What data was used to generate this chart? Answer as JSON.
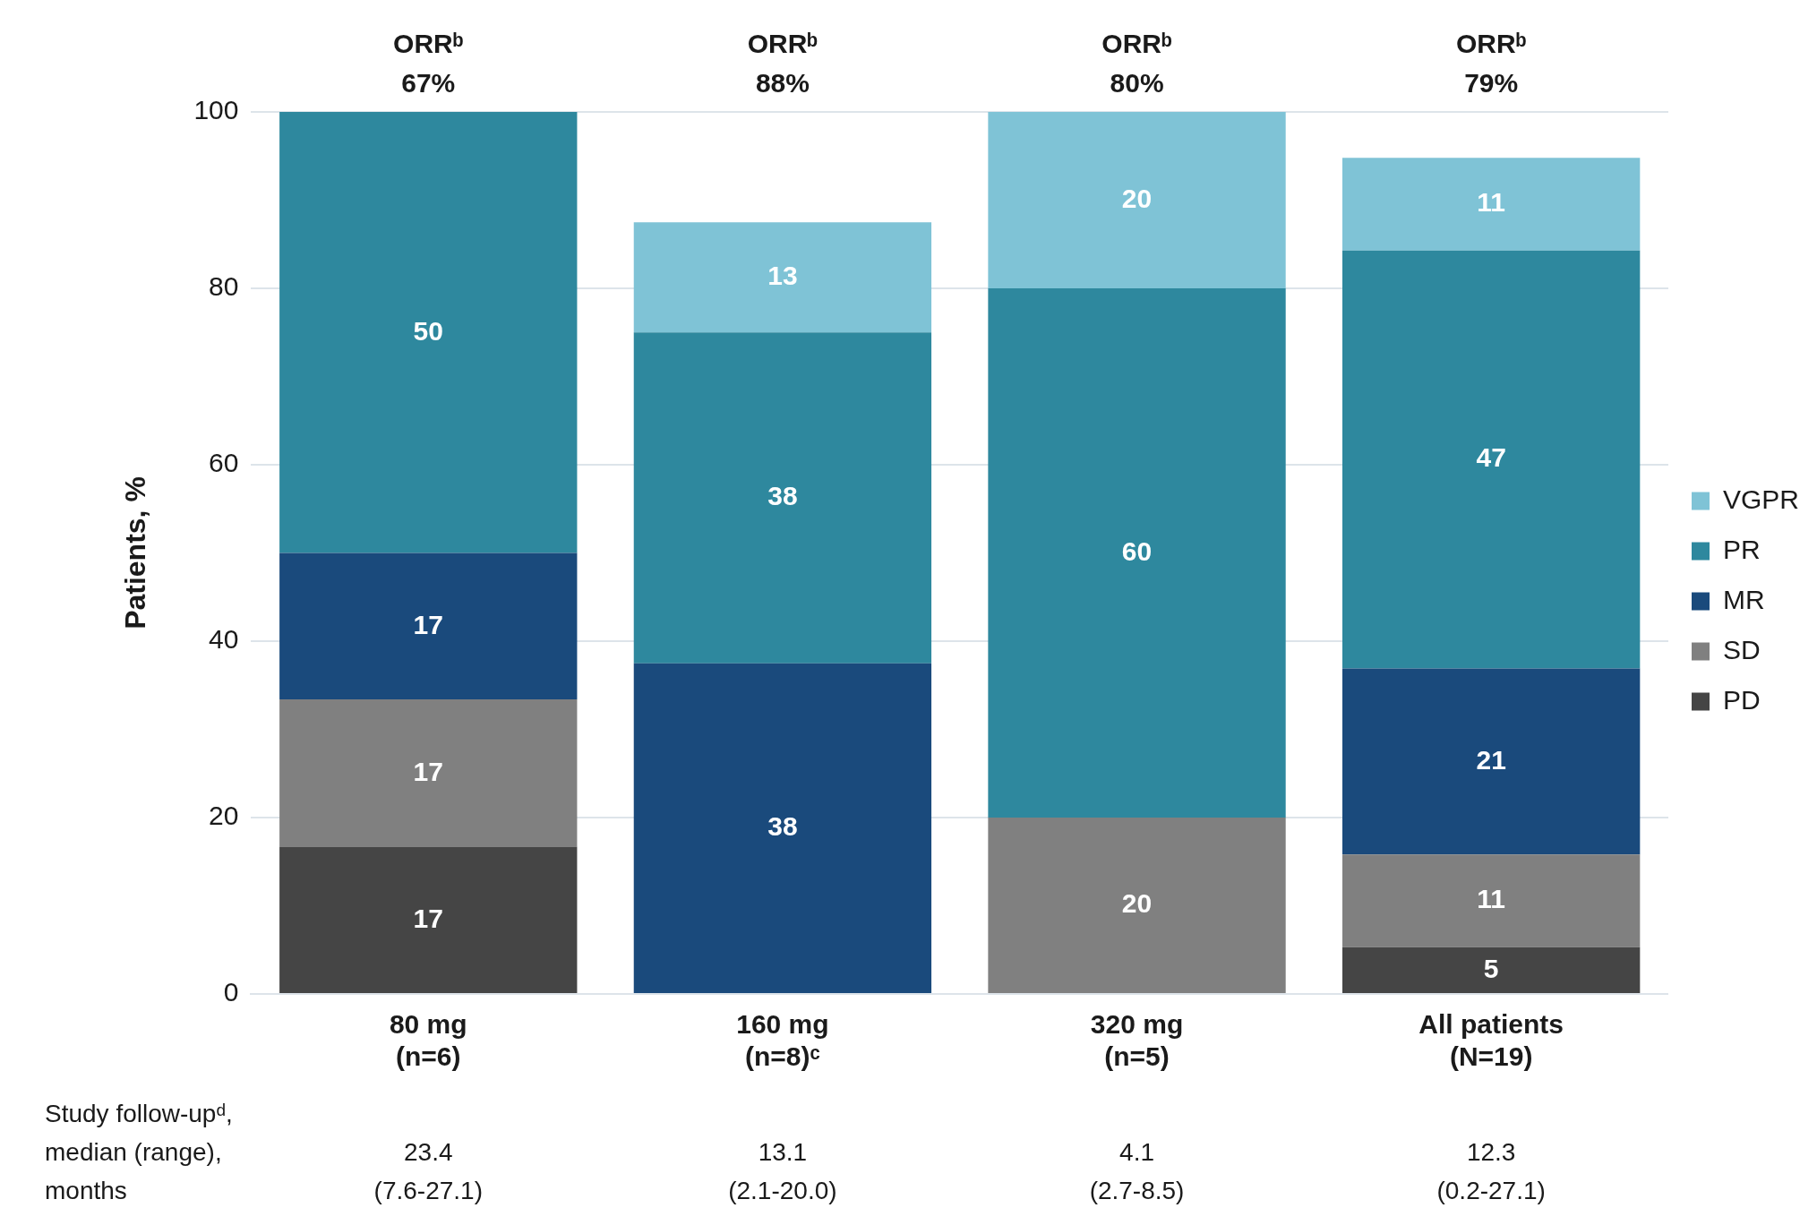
{
  "chart_data": {
    "type": "bar",
    "stacked": true,
    "ylabel": "Patients, %",
    "categories": [
      "80 mg\n(n=6)",
      "160 mg\n(n=8)ᶜ",
      "320 mg\n(n=5)",
      "All patients\n(N=19)"
    ],
    "series": [
      {
        "name": "PD",
        "color": "#454545",
        "values": [
          16.7,
          0,
          0,
          5.3
        ],
        "value_labels": [
          "17",
          null,
          null,
          "5"
        ]
      },
      {
        "name": "SD",
        "color": "#808080",
        "values": [
          16.7,
          0,
          20,
          10.5
        ],
        "value_labels": [
          "17",
          null,
          "20",
          "11"
        ]
      },
      {
        "name": "MR",
        "color": "#1a4a7c",
        "values": [
          16.6,
          37.5,
          0,
          21.1
        ],
        "value_labels": [
          "17",
          "38",
          null,
          "21"
        ]
      },
      {
        "name": "PR",
        "color": "#2e889e",
        "values": [
          50,
          37.5,
          60,
          47.4
        ],
        "value_labels": [
          "50",
          "38",
          "60",
          "47"
        ]
      },
      {
        "name": "VGPR",
        "color": "#7fc3d6",
        "values": [
          0,
          12.5,
          20,
          10.5
        ],
        "value_labels": [
          null,
          "13",
          "20",
          "11"
        ]
      }
    ],
    "ylim": [
      0,
      100
    ],
    "yticks": [
      0,
      20,
      40,
      60,
      80,
      100
    ],
    "grid": "y",
    "legend": "right",
    "annotations": [
      "ORRᵇ\n67%",
      "ORRᵇ\n88%",
      "ORRᵇ\n80%",
      "ORRᵇ\n79%",
      "Study follow-upᵈ,\nmedian (range),\nmonths",
      "23.4\n(7.6-27.1)",
      "13.1\n(2.1-20.0)",
      "4.1\n(2.7-8.5)",
      "12.3\n(0.2-27.1)"
    ]
  }
}
